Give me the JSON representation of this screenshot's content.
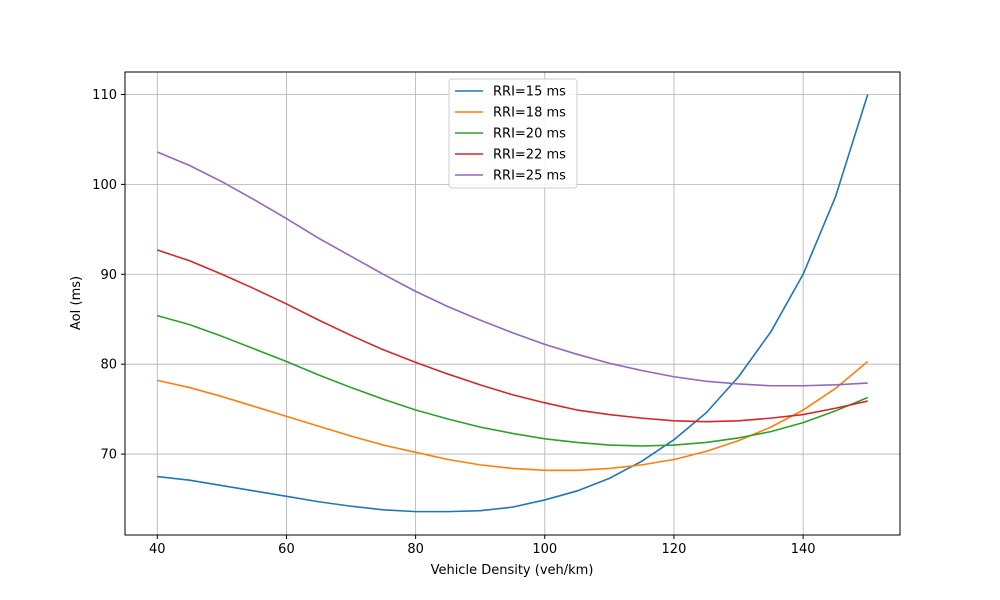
{
  "chart_data": {
    "type": "line",
    "title": "",
    "xlabel": "Vehicle Density (veh/km)",
    "ylabel": "AoI (ms)",
    "xlim": [
      35,
      155
    ],
    "ylim": [
      61,
      112.5
    ],
    "xticks": [
      40,
      60,
      80,
      100,
      120,
      140
    ],
    "yticks": [
      70,
      80,
      90,
      100,
      110
    ],
    "grid": true,
    "legend_position": "top-center",
    "x": [
      40,
      45,
      50,
      55,
      60,
      65,
      70,
      75,
      80,
      85,
      90,
      95,
      100,
      105,
      110,
      115,
      120,
      125,
      130,
      135,
      140,
      145,
      150
    ],
    "series": [
      {
        "name": "RRI=15 ms",
        "color": "#1f77b4",
        "values": [
          67.5,
          67.1,
          66.5,
          65.9,
          65.3,
          64.7,
          64.2,
          63.8,
          63.6,
          63.6,
          63.7,
          64.1,
          64.9,
          65.9,
          67.3,
          69.2,
          71.6,
          74.6,
          78.6,
          83.6,
          90.0,
          98.6,
          110.0
        ]
      },
      {
        "name": "RRI=18 ms",
        "color": "#ff7f0e",
        "values": [
          78.2,
          77.4,
          76.4,
          75.3,
          74.2,
          73.1,
          72.0,
          71.0,
          70.2,
          69.4,
          68.8,
          68.4,
          68.2,
          68.2,
          68.4,
          68.8,
          69.4,
          70.3,
          71.5,
          73.0,
          74.9,
          77.3,
          80.3
        ]
      },
      {
        "name": "RRI=20 ms",
        "color": "#2ca02c",
        "values": [
          85.4,
          84.4,
          83.1,
          81.7,
          80.3,
          78.8,
          77.4,
          76.1,
          74.9,
          73.9,
          73.0,
          72.3,
          71.7,
          71.3,
          71.0,
          70.9,
          71.0,
          71.3,
          71.8,
          72.5,
          73.5,
          74.8,
          76.3
        ]
      },
      {
        "name": "RRI=22 ms",
        "color": "#d62728",
        "values": [
          92.7,
          91.5,
          90.0,
          88.4,
          86.7,
          84.9,
          83.2,
          81.6,
          80.2,
          78.9,
          77.7,
          76.6,
          75.7,
          74.9,
          74.4,
          74.0,
          73.7,
          73.6,
          73.7,
          74.0,
          74.4,
          75.1,
          75.9
        ]
      },
      {
        "name": "RRI=25 ms",
        "color": "#9467bd",
        "values": [
          103.6,
          102.1,
          100.3,
          98.3,
          96.2,
          94.0,
          92.0,
          90.0,
          88.1,
          86.4,
          84.9,
          83.5,
          82.2,
          81.1,
          80.1,
          79.3,
          78.6,
          78.1,
          77.8,
          77.6,
          77.6,
          77.7,
          77.9
        ]
      }
    ]
  }
}
